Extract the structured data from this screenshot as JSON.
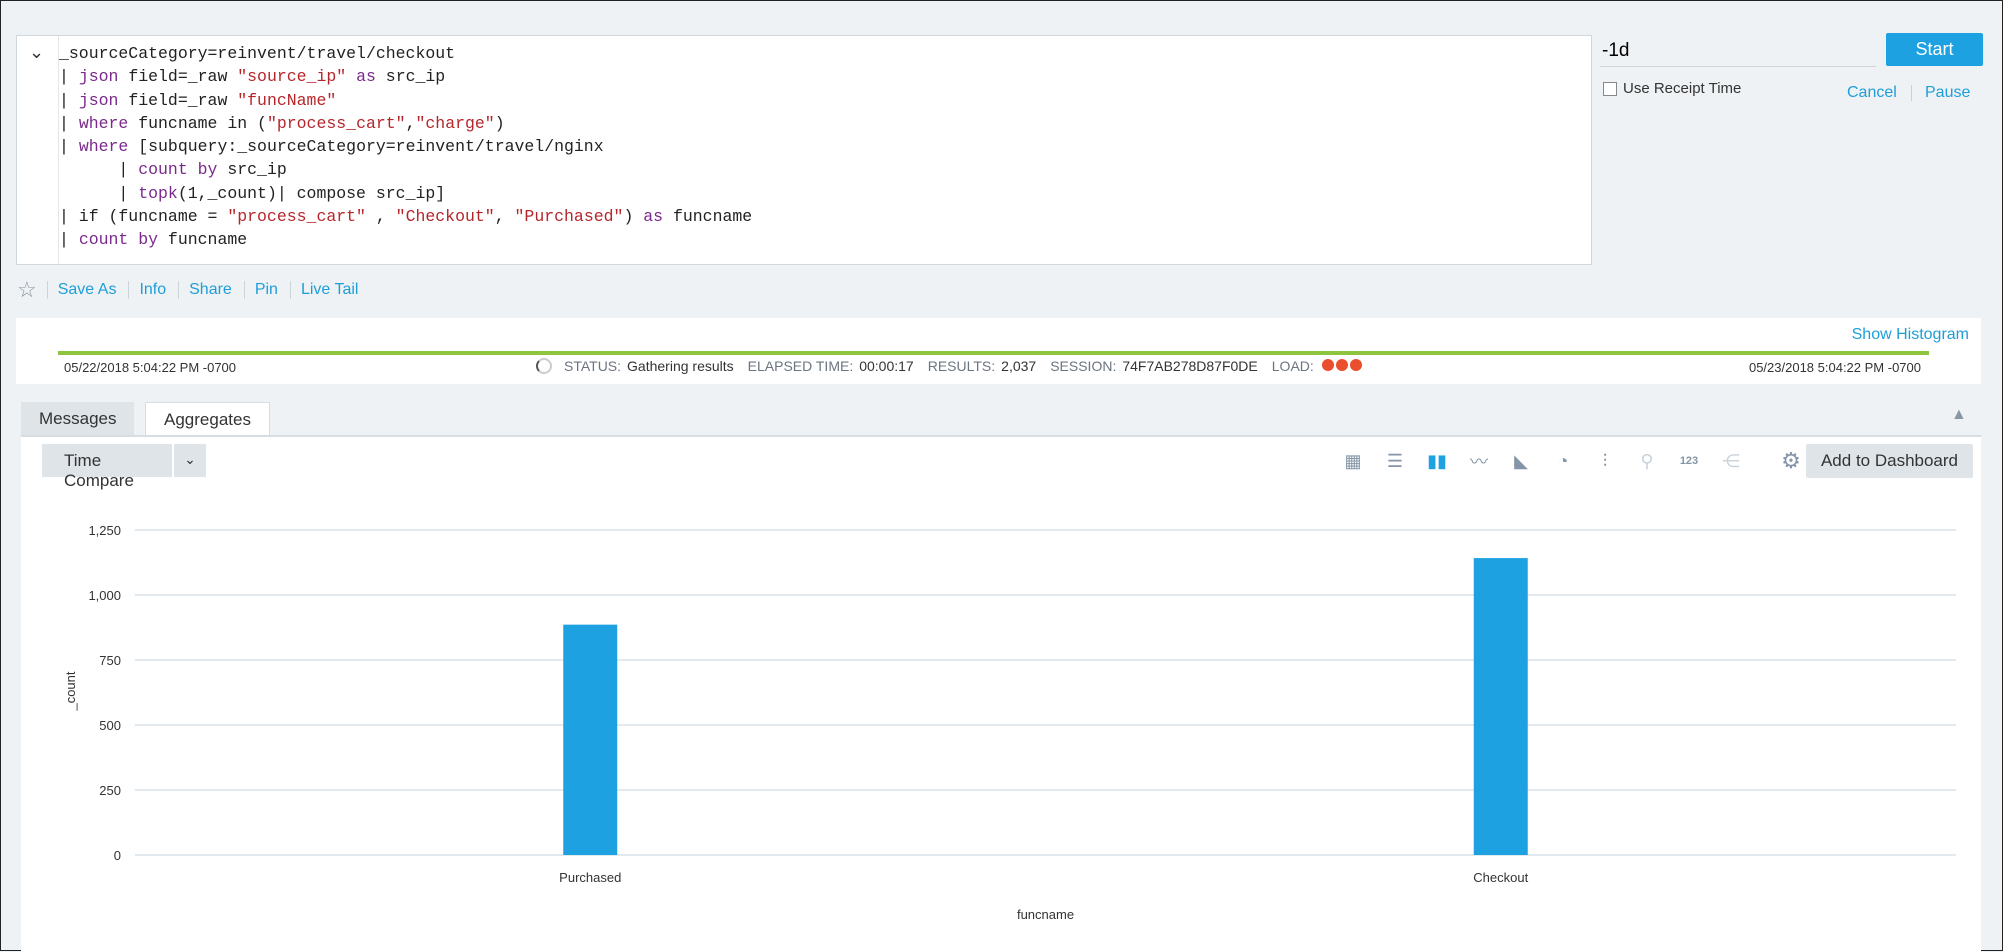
{
  "query": {
    "lines": [
      [
        [
          "",
          "_sourceCategory=reinvent/travel/checkout"
        ]
      ],
      [
        [
          "",
          "| "
        ],
        [
          "kw",
          "json"
        ],
        [
          "",
          " field=_raw "
        ],
        [
          "str",
          "\"source_ip\""
        ],
        [
          "",
          " "
        ],
        [
          "kw",
          "as"
        ],
        [
          "",
          " src_ip"
        ]
      ],
      [
        [
          "",
          "| "
        ],
        [
          "kw",
          "json"
        ],
        [
          "",
          " field=_raw "
        ],
        [
          "str",
          "\"funcName\""
        ]
      ],
      [
        [
          "",
          "| "
        ],
        [
          "kw",
          "where"
        ],
        [
          "",
          " funcname in ("
        ],
        [
          "str",
          "\"process_cart\""
        ],
        [
          "",
          ","
        ],
        [
          "str",
          "\"charge\""
        ],
        [
          "",
          ")"
        ]
      ],
      [
        [
          "",
          "| "
        ],
        [
          "kw",
          "where"
        ],
        [
          "",
          " [subquery:_sourceCategory=reinvent/travel/nginx"
        ]
      ],
      [
        [
          "",
          "      | "
        ],
        [
          "kw",
          "count by"
        ],
        [
          "",
          " src_ip"
        ]
      ],
      [
        [
          "",
          "      | "
        ],
        [
          "kw",
          "topk"
        ],
        [
          "",
          "(1,_count)| compose src_ip]"
        ]
      ],
      [
        [
          "",
          "| if (funcname = "
        ],
        [
          "str",
          "\"process_cart\""
        ],
        [
          "",
          " , "
        ],
        [
          "str",
          "\"Checkout\""
        ],
        [
          "",
          ", "
        ],
        [
          "str",
          "\"Purchased\""
        ],
        [
          "",
          ") "
        ],
        [
          "kw",
          "as"
        ],
        [
          "",
          " funcname"
        ]
      ],
      [
        [
          "",
          "| "
        ],
        [
          "kw",
          "count by"
        ],
        [
          "",
          " funcname"
        ]
      ]
    ]
  },
  "time_range": "-1d",
  "start_label": "Start",
  "receipt_label": "Use Receipt Time",
  "receipt_checked": false,
  "cancel_label": "Cancel",
  "pause_label": "Pause",
  "actions": [
    "Save As",
    "Info",
    "Share",
    "Pin",
    "Live Tail"
  ],
  "status": {
    "show_histogram": "Show Histogram",
    "from": "05/22/2018 5:04:22 PM -0700",
    "to": "05/23/2018 5:04:22 PM -0700",
    "status_label": "STATUS:",
    "status": "Gathering results",
    "elapsed_label": "ELAPSED TIME:",
    "elapsed": "00:00:17",
    "results_label": "RESULTS:",
    "results": "2,037",
    "session_label": "SESSION:",
    "session": "74F7AB278D87F0DE",
    "load_label": "LOAD:"
  },
  "tabs": [
    "Messages",
    "Aggregates"
  ],
  "active_tab": "Aggregates",
  "time_compare": "Time Compare",
  "viz_icons": [
    "table-icon",
    "bar-horizontal-icon",
    "column-chart-icon",
    "line-chart-icon",
    "area-chart-icon",
    "pie-chart-icon",
    "box-plot-icon",
    "map-pin-icon",
    "single-value-icon",
    "sankey-icon"
  ],
  "active_viz": "column-chart-icon",
  "add_dashboard": "Add to Dashboard",
  "colors": {
    "accent": "#1ea1e1",
    "bar": "#1ea1e1",
    "load": "#ea4e2c",
    "progress": "#8dc53e"
  },
  "chart_data": {
    "type": "bar",
    "categories": [
      "Purchased",
      "Checkout"
    ],
    "values": [
      886,
      1142
    ],
    "xlabel": "funcname",
    "ylabel": "_count",
    "ylim": [
      0,
      1250
    ],
    "yticks": [
      0,
      250,
      500,
      750,
      1000,
      1250
    ],
    "ytick_labels": [
      "0",
      "250",
      "500",
      "750",
      "1,000",
      "1,250"
    ],
    "grid": true
  }
}
